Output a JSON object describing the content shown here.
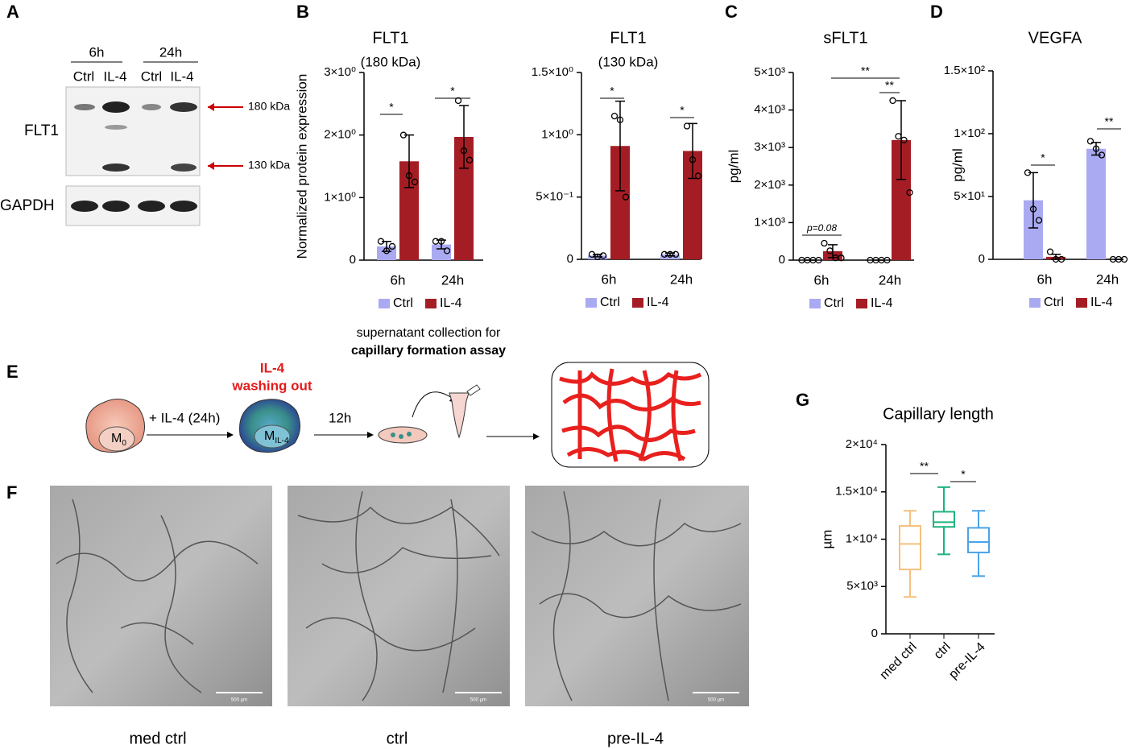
{
  "panels": [
    "A",
    "B",
    "C",
    "D",
    "E",
    "F",
    "G"
  ],
  "western": {
    "times": [
      "6h",
      "24h"
    ],
    "lanes": [
      "Ctrl",
      "IL-4",
      "Ctrl",
      "IL-4"
    ],
    "proteins": [
      "FLT1",
      "GAPDH"
    ],
    "sizes": [
      "180 kDa",
      "130 kDa"
    ]
  },
  "chart_data": [
    {
      "type": "bar",
      "title": "FLT1",
      "subtitle": "(180 kDa)",
      "y_label": "Normalized protein expression",
      "categories": [
        "6h",
        "24h"
      ],
      "series": [
        {
          "name": "Ctrl",
          "color": "#aaaaf2",
          "values": [
            0.22,
            0.25
          ],
          "errors": [
            0.08,
            0.07
          ],
          "points": [
            [
              0.3,
              0.15,
              0.22
            ],
            [
              0.3,
              0.3,
              0.15
            ]
          ]
        },
        {
          "name": "IL-4",
          "color": "#a51d24",
          "values": [
            1.58,
            1.97
          ],
          "errors": [
            0.42,
            0.5
          ],
          "points": [
            [
              2.0,
              1.35,
              1.25
            ],
            [
              2.55,
              1.75,
              1.6
            ]
          ]
        }
      ],
      "ylim": [
        0,
        3
      ],
      "yticks": [
        0,
        {
          "value": 1,
          "label": "1×10⁰"
        },
        {
          "value": 2,
          "label": "2×10⁰"
        },
        {
          "value": 3,
          "label": "3×10⁰"
        }
      ],
      "annotations": [
        "*",
        "*"
      ]
    },
    {
      "type": "bar",
      "title": "FLT1",
      "subtitle": "(130 kDa)",
      "categories": [
        "6h",
        "24h"
      ],
      "series": [
        {
          "name": "Ctrl",
          "color": "#aaaaf2",
          "values": [
            0.03,
            0.04
          ],
          "errors": [
            0.01,
            0.01
          ],
          "points": [
            [
              0.04,
              0.02,
              0.03
            ],
            [
              0.04,
              0.04,
              0.04
            ]
          ]
        },
        {
          "name": "IL-4",
          "color": "#a51d24",
          "values": [
            0.91,
            0.87
          ],
          "errors": [
            0.36,
            0.22
          ],
          "points": [
            [
              1.15,
              1.12,
              0.5
            ],
            [
              1.07,
              0.8,
              0.67
            ]
          ]
        }
      ],
      "ylim": [
        0,
        1.5
      ],
      "yticks": [
        0,
        {
          "value": 0.5,
          "label": "5×10⁻¹"
        },
        {
          "value": 1,
          "label": "1×10⁰"
        },
        {
          "value": 1.5,
          "label": "1.5×10⁰"
        }
      ],
      "annotations": [
        "*",
        "*"
      ]
    },
    {
      "type": "bar",
      "title": "sFLT1",
      "y_label": "pg/ml",
      "categories": [
        "6h",
        "24h"
      ],
      "series": [
        {
          "name": "Ctrl",
          "color": "#aaaaf2",
          "values": [
            0,
            0
          ],
          "errors": [
            0,
            0
          ],
          "points": [
            [
              0,
              0,
              0,
              0
            ],
            [
              0,
              0,
              0,
              0
            ]
          ]
        },
        {
          "name": "IL-4",
          "color": "#a51d24",
          "values": [
            240,
            3200
          ],
          "errors": [
            170,
            1050
          ],
          "points": [
            [
              450,
              250,
              60,
              60
            ],
            [
              4250,
              3300,
              3200,
              1800
            ]
          ]
        }
      ],
      "ylim": [
        0,
        5000
      ],
      "yticks": [
        0,
        {
          "value": 1000,
          "label": "1×10³"
        },
        {
          "value": 2000,
          "label": "2×10³"
        },
        {
          "value": 3000,
          "label": "3×10³"
        },
        {
          "value": 4000,
          "label": "4×10³"
        },
        {
          "value": 5000,
          "label": "5×10³"
        }
      ],
      "annotations": [
        "p=0.08",
        "**",
        "**"
      ]
    },
    {
      "type": "bar",
      "title": "VEGFA",
      "y_label": "pg/ml",
      "categories": [
        "6h",
        "24h"
      ],
      "series": [
        {
          "name": "Ctrl",
          "color": "#aaaaf2",
          "values": [
            47,
            88
          ],
          "errors": [
            22,
            5
          ],
          "points": [
            [
              69,
              40,
              31
            ],
            [
              94,
              88,
              83
            ]
          ]
        },
        {
          "name": "IL-4",
          "color": "#a51d24",
          "values": [
            2,
            0
          ],
          "errors": [
            2,
            0
          ],
          "points": [
            [
              6,
              0,
              0
            ],
            [
              0,
              0,
              0
            ]
          ]
        }
      ],
      "ylim": [
        0,
        150
      ],
      "yticks": [
        0,
        {
          "value": 50,
          "label": "5×10¹"
        },
        {
          "value": 100,
          "label": "1×10²"
        },
        {
          "value": 150,
          "label": "1.5×10²"
        }
      ],
      "annotations": [
        "*",
        "**"
      ]
    },
    {
      "type": "box",
      "title": "Capillary length",
      "y_label": "µm",
      "categories": [
        "med ctrl",
        "ctrl",
        "pre-IL-4"
      ],
      "colors": [
        "#f6c07c",
        "#1cb47b",
        "#4aa3e9"
      ],
      "boxes": [
        [
          3900,
          6800,
          9500,
          11400,
          13000
        ],
        [
          8400,
          11300,
          11800,
          12900,
          15500
        ],
        [
          6100,
          8600,
          9700,
          11200,
          13000
        ]
      ],
      "ylim": [
        0,
        20000
      ],
      "yticks": [
        0,
        {
          "value": 5000,
          "label": "5×10³"
        },
        {
          "value": 10000,
          "label": "1×10⁴"
        },
        {
          "value": 15000,
          "label": "1.5×10⁴"
        },
        {
          "value": 20000,
          "label": "2×10⁴"
        }
      ],
      "annotations": [
        "**",
        "*"
      ]
    }
  ],
  "schematic": {
    "step1": "+ IL-4 (24h)",
    "wash": [
      "IL-4",
      "washing out"
    ],
    "step2": "12h",
    "collection": [
      "supernatant collection for",
      "capillary formation assay"
    ],
    "cells": [
      {
        "main": "M",
        "sub": "0"
      },
      {
        "main": "M",
        "sub": "IL-4"
      }
    ]
  },
  "micrographs": {
    "scale": "500 µm",
    "captions": [
      "med ctrl",
      "ctrl",
      "pre-IL-4"
    ]
  }
}
